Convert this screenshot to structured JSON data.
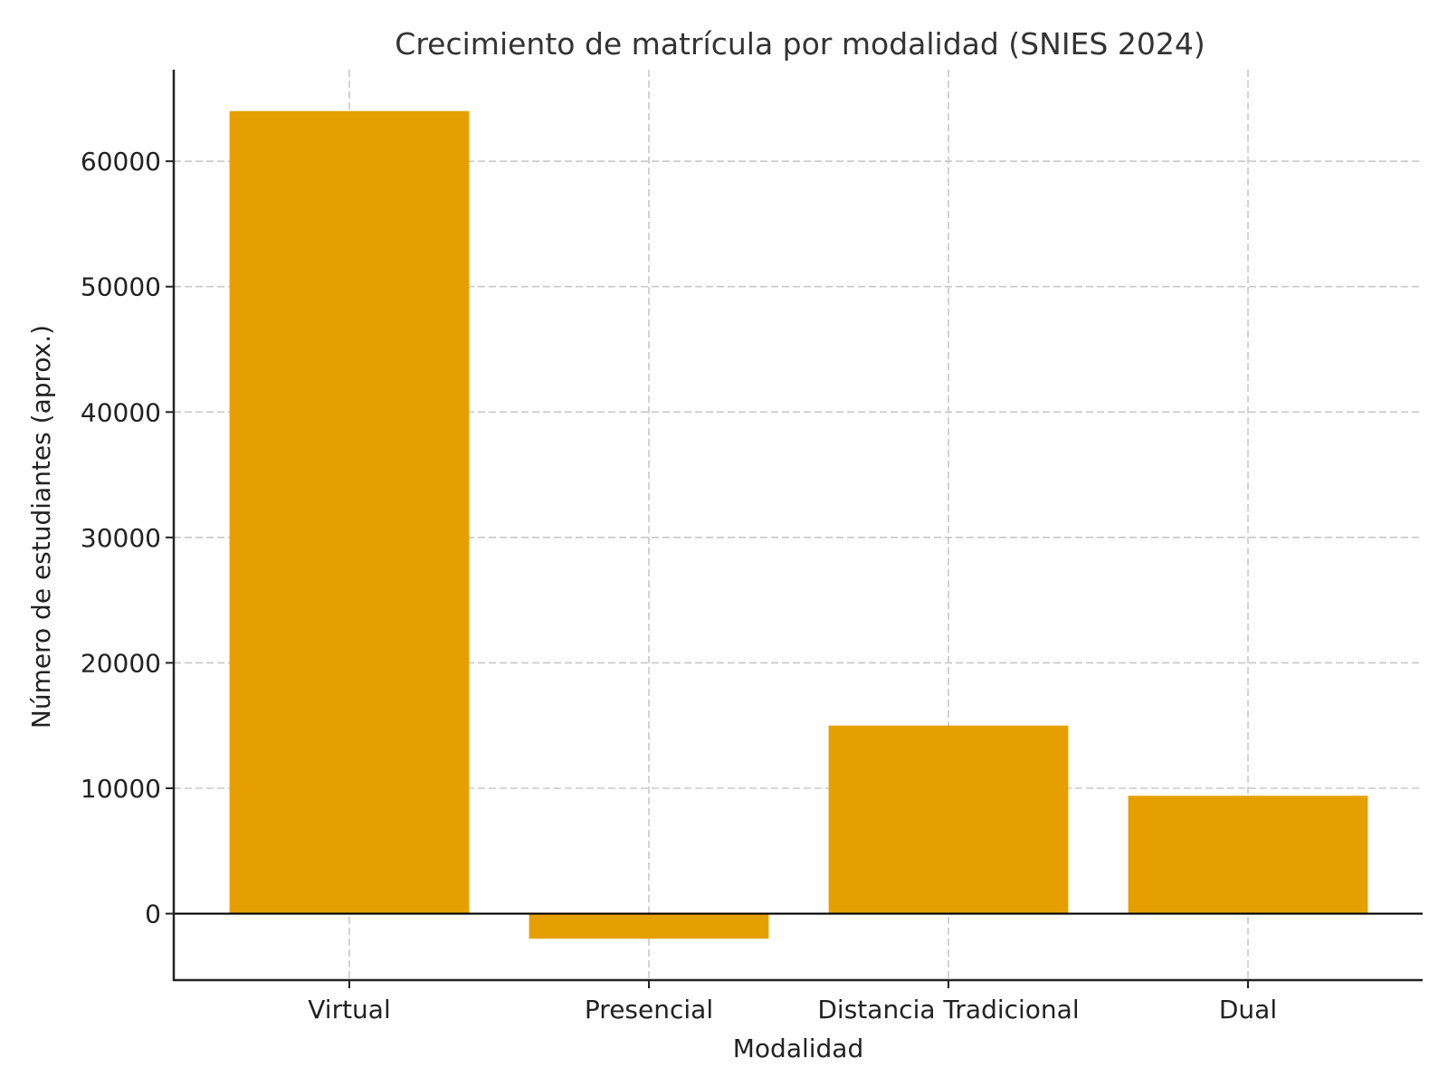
{
  "chart_data": {
    "type": "bar",
    "title": "Crecimiento de matrícula por modalidad (SNIES 2024)",
    "xlabel": "Modalidad",
    "ylabel": "Número de estudiantes (aprox.)",
    "categories": [
      "Virtual",
      "Presencial",
      "Distancia Tradicional",
      "Dual"
    ],
    "values": [
      64000,
      -2000,
      15000,
      9400
    ],
    "ylim": [
      -5300,
      67300
    ],
    "yticks": [
      0,
      10000,
      20000,
      30000,
      40000,
      50000,
      60000
    ],
    "ytick_labels": [
      "0",
      "10000",
      "20000",
      "30000",
      "40000",
      "50000",
      "60000"
    ],
    "grid": true,
    "grid_style": "dashed",
    "legend": null,
    "bar_color": "#E5A000",
    "zero_line": true
  }
}
